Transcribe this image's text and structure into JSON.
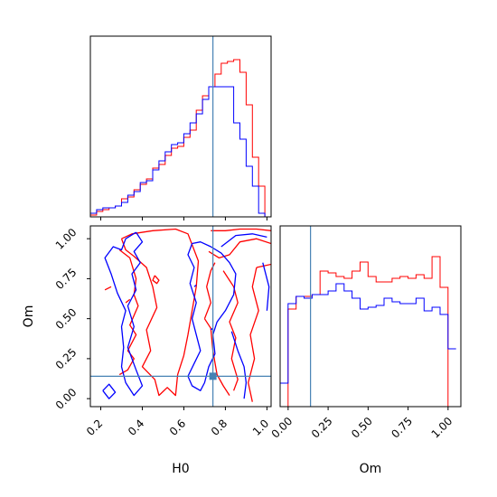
{
  "chart_data": {
    "type": "corner",
    "parameters": [
      "H0",
      "Om"
    ],
    "truth": {
      "H0": 0.74,
      "Om": 0.14
    },
    "truth_color": "#4682b4",
    "grid": false,
    "series": [
      {
        "color": "#ff0000"
      },
      {
        "color": "#0000ff"
      }
    ],
    "axes": {
      "H0": {
        "xlabel": "H0",
        "lim": [
          0.15,
          1.02
        ],
        "ticks": [
          0.2,
          0.4,
          0.6,
          0.8,
          1.0
        ],
        "tick_labels": [
          "0.2",
          "0.4",
          "0.6",
          "0.8",
          "1.0"
        ]
      },
      "Om": {
        "xlabel": "Om",
        "ylabel": "Om",
        "lim": [
          -0.05,
          1.08
        ],
        "ticks": [
          0.0,
          0.25,
          0.5,
          0.75,
          1.0
        ],
        "tick_labels": [
          "0.00",
          "0.25",
          "0.50",
          "0.75",
          "1.00"
        ]
      }
    },
    "hist_H0": {
      "bin_edges": [
        0.15,
        0.18,
        0.21,
        0.24,
        0.27,
        0.3,
        0.33,
        0.36,
        0.39,
        0.42,
        0.45,
        0.48,
        0.51,
        0.54,
        0.57,
        0.6,
        0.63,
        0.66,
        0.69,
        0.72,
        0.75,
        0.78,
        0.81,
        0.84,
        0.87,
        0.9,
        0.93,
        0.96,
        0.99,
        1.02
      ],
      "ylim": [
        0,
        1.0
      ],
      "red": [
        0.01,
        0.03,
        0.04,
        0.05,
        0.06,
        0.1,
        0.11,
        0.15,
        0.18,
        0.21,
        0.27,
        0.29,
        0.34,
        0.38,
        0.39,
        0.44,
        0.48,
        0.59,
        0.67,
        0.72,
        0.79,
        0.85,
        0.86,
        0.87,
        0.8,
        0.62,
        0.33,
        0.17,
        0.0
      ],
      "blue": [
        0.02,
        0.04,
        0.05,
        0.05,
        0.06,
        0.08,
        0.12,
        0.14,
        0.19,
        0.2,
        0.26,
        0.31,
        0.36,
        0.4,
        0.41,
        0.46,
        0.52,
        0.57,
        0.65,
        0.72,
        0.72,
        0.72,
        0.72,
        0.52,
        0.43,
        0.28,
        0.17,
        0.02,
        0.0
      ]
    },
    "hist_Om": {
      "bin_edges": [
        -0.05,
        0.0,
        0.05,
        0.1,
        0.15,
        0.2,
        0.25,
        0.3,
        0.35,
        0.4,
        0.45,
        0.5,
        0.55,
        0.6,
        0.65,
        0.7,
        0.75,
        0.8,
        0.85,
        0.9,
        0.95,
        1.0,
        1.05
      ],
      "ylim": [
        0,
        1.0
      ],
      "red": [
        0.0,
        0.54,
        0.61,
        0.61,
        0.62,
        0.75,
        0.74,
        0.72,
        0.71,
        0.75,
        0.8,
        0.72,
        0.69,
        0.69,
        0.71,
        0.72,
        0.71,
        0.73,
        0.71,
        0.83,
        0.66,
        0.0
      ],
      "blue": [
        0.13,
        0.57,
        0.61,
        0.6,
        0.62,
        0.62,
        0.64,
        0.68,
        0.64,
        0.6,
        0.54,
        0.55,
        0.56,
        0.6,
        0.58,
        0.57,
        0.57,
        0.6,
        0.53,
        0.55,
        0.51,
        0.32
      ]
    },
    "contours": {
      "red": [
        [
          [
            0.3,
            1.0
          ],
          [
            0.35,
            1.03
          ],
          [
            0.45,
            1.05
          ],
          [
            0.56,
            1.06
          ],
          [
            0.62,
            1.03
          ],
          [
            0.67,
            0.86
          ],
          [
            0.66,
            0.7
          ],
          [
            0.64,
            0.55
          ],
          [
            0.62,
            0.4
          ],
          [
            0.6,
            0.27
          ],
          [
            0.57,
            0.15
          ],
          [
            0.56,
            0.02
          ],
          [
            0.52,
            0.07
          ],
          [
            0.48,
            0.02
          ],
          [
            0.46,
            0.12
          ],
          [
            0.4,
            0.2
          ],
          [
            0.44,
            0.3
          ],
          [
            0.42,
            0.43
          ],
          [
            0.47,
            0.57
          ],
          [
            0.45,
            0.7
          ],
          [
            0.42,
            0.82
          ],
          [
            0.36,
            0.89
          ],
          [
            0.32,
            0.93
          ],
          [
            0.3,
            1.0
          ]
        ],
        [
          [
            0.29,
            0.15
          ],
          [
            0.33,
            0.18
          ],
          [
            0.36,
            0.25
          ],
          [
            0.33,
            0.3
          ],
          [
            0.37,
            0.4
          ],
          [
            0.34,
            0.46
          ],
          [
            0.38,
            0.58
          ],
          [
            0.36,
            0.65
          ],
          [
            0.37,
            0.75
          ],
          [
            0.34,
            0.88
          ],
          [
            0.29,
            0.93
          ]
        ],
        [
          [
            0.73,
            1.05
          ],
          [
            0.8,
            1.05
          ],
          [
            0.87,
            1.06
          ],
          [
            0.95,
            1.06
          ],
          [
            1.02,
            1.05
          ]
        ],
        [
          [
            0.72,
            0.92
          ],
          [
            0.77,
            0.88
          ],
          [
            0.82,
            0.9
          ],
          [
            0.87,
            0.98
          ],
          [
            0.95,
            1.0
          ],
          [
            1.02,
            0.97
          ]
        ],
        [
          [
            0.7,
            0.5
          ],
          [
            0.73,
            0.6
          ],
          [
            0.71,
            0.7
          ],
          [
            0.73,
            0.8
          ],
          [
            0.75,
            0.85
          ]
        ],
        [
          [
            0.7,
            0.5
          ],
          [
            0.73,
            0.44
          ],
          [
            0.74,
            0.3
          ],
          [
            0.76,
            0.15
          ],
          [
            0.79,
            0.08
          ],
          [
            0.82,
            0.02
          ]
        ],
        [
          [
            0.79,
            0.8
          ],
          [
            0.84,
            0.7
          ],
          [
            0.86,
            0.6
          ],
          [
            0.82,
            0.48
          ],
          [
            0.85,
            0.38
          ],
          [
            0.83,
            0.25
          ],
          [
            0.86,
            0.12
          ],
          [
            0.84,
            0.05
          ]
        ],
        [
          [
            0.95,
            0.82
          ],
          [
            1.02,
            0.84
          ]
        ],
        [
          [
            0.95,
            0.82
          ],
          [
            0.93,
            0.7
          ],
          [
            0.96,
            0.55
          ],
          [
            0.92,
            0.4
          ],
          [
            0.94,
            0.25
          ],
          [
            0.91,
            0.1
          ],
          [
            0.93,
            -0.02
          ]
        ],
        [
          [
            0.46,
            0.77
          ],
          [
            0.48,
            0.74
          ],
          [
            0.47,
            0.72
          ],
          [
            0.45,
            0.74
          ],
          [
            0.46,
            0.77
          ]
        ],
        [
          [
            0.32,
            0.6
          ],
          [
            0.34,
            0.62
          ]
        ],
        [
          [
            0.22,
            0.68
          ],
          [
            0.25,
            0.7
          ]
        ]
      ],
      "blue": [
        [
          [
            0.37,
            1.04
          ],
          [
            0.4,
            0.98
          ],
          [
            0.36,
            0.92
          ],
          [
            0.39,
            0.85
          ],
          [
            0.35,
            0.78
          ],
          [
            0.37,
            0.68
          ],
          [
            0.33,
            0.58
          ],
          [
            0.36,
            0.45
          ],
          [
            0.33,
            0.32
          ],
          [
            0.37,
            0.18
          ],
          [
            0.4,
            0.08
          ],
          [
            0.36,
            0.02
          ],
          [
            0.32,
            0.1
          ],
          [
            0.3,
            0.2
          ],
          [
            0.31,
            0.32
          ],
          [
            0.3,
            0.45
          ],
          [
            0.32,
            0.55
          ],
          [
            0.28,
            0.66
          ],
          [
            0.25,
            0.78
          ],
          [
            0.22,
            0.88
          ],
          [
            0.26,
            0.95
          ],
          [
            0.3,
            0.93
          ],
          [
            0.32,
            1.0
          ],
          [
            0.37,
            1.04
          ]
        ],
        [
          [
            0.64,
            0.97
          ],
          [
            0.68,
            0.98
          ],
          [
            0.73,
            0.95
          ],
          [
            0.78,
            0.91
          ],
          [
            0.82,
            0.85
          ],
          [
            0.85,
            0.78
          ],
          [
            0.84,
            0.65
          ],
          [
            0.8,
            0.55
          ],
          [
            0.76,
            0.48
          ],
          [
            0.74,
            0.4
          ],
          [
            0.75,
            0.28
          ],
          [
            0.72,
            0.2
          ],
          [
            0.7,
            0.1
          ],
          [
            0.68,
            0.05
          ],
          [
            0.64,
            0.08
          ],
          [
            0.62,
            0.14
          ],
          [
            0.65,
            0.22
          ],
          [
            0.68,
            0.3
          ],
          [
            0.66,
            0.4
          ],
          [
            0.64,
            0.5
          ],
          [
            0.66,
            0.6
          ],
          [
            0.63,
            0.72
          ],
          [
            0.65,
            0.82
          ],
          [
            0.62,
            0.9
          ],
          [
            0.64,
            0.97
          ]
        ],
        [
          [
            0.78,
            0.95
          ],
          [
            0.85,
            1.02
          ],
          [
            0.93,
            1.03
          ],
          [
            1.0,
            1.01
          ]
        ],
        [
          [
            0.83,
            0.42
          ],
          [
            0.86,
            0.3
          ],
          [
            0.89,
            0.2
          ],
          [
            0.9,
            0.1
          ],
          [
            0.89,
            0.0
          ]
        ],
        [
          [
            0.98,
            0.85
          ],
          [
            1.01,
            0.7
          ],
          [
            1.0,
            0.55
          ]
        ],
        [
          [
            0.21,
            0.05
          ],
          [
            0.24,
            0.09
          ],
          [
            0.27,
            0.04
          ],
          [
            0.24,
            0.0
          ],
          [
            0.21,
            0.05
          ]
        ],
        [
          [
            0.65,
            0.7
          ],
          [
            0.66,
            0.71
          ]
        ],
        [
          [
            0.73,
            0.43
          ],
          [
            0.74,
            0.44
          ]
        ]
      ]
    }
  }
}
